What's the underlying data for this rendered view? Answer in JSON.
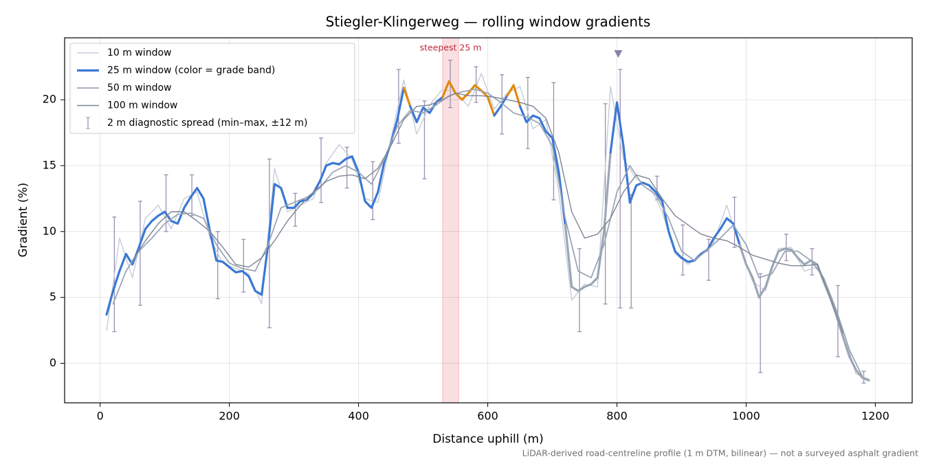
{
  "chart_data": {
    "type": "line",
    "title": "Stiegler-Klingerweg — rolling window gradients",
    "x_label": "Distance uphill (m)",
    "y_label": "Gradient (%)",
    "footnote": "LiDAR-derived road-centreline profile (1 m DTM, bilinear) — not a surveyed asphalt gradient",
    "xlim": [
      -55,
      1257
    ],
    "ylim": [
      -3,
      24.7
    ],
    "xticks": [
      0,
      200,
      400,
      600,
      800,
      1000,
      1200
    ],
    "yticks": [
      0,
      5,
      10,
      15,
      20
    ],
    "grid": true,
    "legend": "upper left",
    "series": [
      {
        "name": "10 m window",
        "color": "#c5ccd8",
        "x": [
          10,
          30,
          50,
          70,
          90,
          110,
          130,
          150,
          170,
          190,
          210,
          230,
          250,
          270,
          290,
          310,
          330,
          350,
          370,
          390,
          410,
          430,
          450,
          470,
          490,
          510,
          530,
          550,
          570,
          590,
          610,
          630,
          650,
          670,
          690,
          710,
          730,
          750,
          770,
          790,
          810,
          830,
          850,
          870,
          890,
          910,
          930,
          950,
          970,
          990,
          1010,
          1030,
          1050,
          1070,
          1090,
          1110,
          1130,
          1150,
          1170,
          1190
        ],
        "values": [
          2.5,
          9.5,
          6.5,
          11,
          12,
          10.2,
          12.5,
          13,
          9.5,
          7.6,
          7.2,
          6.8,
          4.5,
          14.8,
          11.5,
          12,
          12.5,
          15.2,
          16.6,
          15.5,
          12.5,
          12.2,
          17,
          21.5,
          17.4,
          19.6,
          20.8,
          20.6,
          19.5,
          22,
          19.3,
          20.5,
          21,
          17.8,
          18.5,
          13,
          4.8,
          6,
          5.8,
          21,
          15.5,
          14,
          13.5,
          11.5,
          8.3,
          7.5,
          8.2,
          9.2,
          12,
          8.8,
          6.2,
          5.5,
          8.7,
          8.8,
          7,
          7.3,
          5,
          2.5,
          -0.8,
          -1.2
        ]
      },
      {
        "name": "25 m window (color = grade band)",
        "color": "#3a78d4",
        "band_color": "#e08a0b",
        "band_above": 20,
        "muted_color": "#9ba6b5",
        "muted_ranges": [
          [
            715,
            785
          ],
          [
            985,
            1200
          ]
        ],
        "x": [
          10,
          20,
          30,
          40,
          50,
          60,
          70,
          80,
          90,
          100,
          110,
          120,
          130,
          140,
          150,
          160,
          170,
          180,
          190,
          200,
          210,
          220,
          230,
          240,
          250,
          260,
          270,
          280,
          290,
          300,
          310,
          320,
          330,
          340,
          350,
          360,
          370,
          380,
          390,
          400,
          410,
          420,
          430,
          440,
          450,
          460,
          470,
          480,
          490,
          500,
          510,
          520,
          530,
          540,
          550,
          560,
          570,
          580,
          590,
          600,
          610,
          620,
          630,
          640,
          650,
          660,
          670,
          680,
          690,
          700,
          710,
          720,
          730,
          740,
          750,
          760,
          770,
          780,
          790,
          800,
          810,
          820,
          830,
          840,
          850,
          860,
          870,
          880,
          890,
          900,
          910,
          920,
          930,
          940,
          950,
          960,
          970,
          980,
          990,
          1000,
          1010,
          1020,
          1030,
          1040,
          1050,
          1060,
          1070,
          1080,
          1090,
          1100,
          1110,
          1120,
          1130,
          1140,
          1150,
          1160,
          1170,
          1180,
          1190
        ],
        "values": [
          3.7,
          5.5,
          7,
          8.3,
          7.5,
          8.8,
          10.2,
          10.8,
          11.2,
          11.5,
          10.8,
          10.6,
          11.8,
          12.6,
          13.3,
          12.5,
          10,
          7.8,
          7.7,
          7.3,
          6.9,
          7,
          6.6,
          5.5,
          5.2,
          9,
          13.6,
          13.3,
          11.8,
          11.8,
          12.3,
          12.4,
          12.9,
          13.8,
          15,
          15.2,
          15.1,
          15.5,
          15.7,
          14.5,
          12.3,
          11.8,
          13,
          15.3,
          16.7,
          18.5,
          20.9,
          19.5,
          18.3,
          19.4,
          19,
          19.8,
          20.2,
          21.4,
          20.5,
          20,
          20.5,
          21.1,
          20.7,
          20.2,
          18.8,
          19.5,
          20.3,
          21.1,
          19.5,
          18.3,
          18.8,
          18.6,
          17.6,
          17.1,
          14.5,
          10.5,
          5.8,
          5.5,
          5.8,
          6,
          6.5,
          10,
          16,
          19.8,
          16.5,
          12.2,
          13.5,
          13.7,
          13.5,
          13,
          12.3,
          10,
          8.5,
          8,
          7.7,
          7.8,
          8.3,
          8.6,
          9.5,
          10.2,
          11,
          10.6,
          9,
          7.5,
          6.5,
          5,
          5.8,
          7.3,
          8.5,
          8.7,
          8.6,
          8,
          7.5,
          7.8,
          7.5,
          6.2,
          5,
          3.6,
          2,
          0.5,
          -0.5,
          -1.1,
          -1.3
        ]
      },
      {
        "name": "50 m window",
        "color": "#9ba6b5",
        "x": [
          20,
          40,
          60,
          80,
          100,
          120,
          140,
          160,
          180,
          200,
          220,
          240,
          260,
          280,
          300,
          320,
          340,
          360,
          380,
          400,
          420,
          440,
          460,
          480,
          500,
          520,
          540,
          560,
          580,
          600,
          620,
          640,
          660,
          680,
          700,
          720,
          740,
          760,
          780,
          800,
          820,
          840,
          860,
          880,
          900,
          920,
          940,
          960,
          980,
          1000,
          1020,
          1040,
          1060,
          1080,
          1100,
          1120,
          1140,
          1160,
          1180
        ],
        "values": [
          4.5,
          7,
          8.5,
          9.5,
          10.6,
          11.3,
          11.4,
          11,
          9,
          7.6,
          7.2,
          7,
          9,
          11.8,
          12.2,
          12.6,
          13.3,
          14.5,
          15,
          14.5,
          13.6,
          15.5,
          18,
          19.2,
          19,
          19.6,
          20.3,
          20.6,
          20.8,
          20.5,
          19.8,
          19,
          18.7,
          18.2,
          16.5,
          11,
          7,
          6.5,
          9,
          13,
          15,
          13.5,
          12.8,
          11,
          8.5,
          7.8,
          8.6,
          9.5,
          10.5,
          9,
          6.5,
          6.8,
          8.5,
          8.5,
          7.8,
          6.5,
          4,
          1,
          -1
        ]
      },
      {
        "name": "100 m window",
        "color": "#7c8494",
        "x": [
          50,
          70,
          90,
          110,
          130,
          150,
          170,
          190,
          210,
          230,
          250,
          270,
          290,
          310,
          330,
          350,
          370,
          390,
          410,
          430,
          450,
          470,
          490,
          510,
          530,
          550,
          570,
          590,
          610,
          630,
          650,
          670,
          690,
          710,
          730,
          750,
          770,
          790,
          810,
          830,
          850,
          870,
          890,
          910,
          930,
          950,
          970,
          990,
          1010,
          1030,
          1050,
          1070,
          1090,
          1110,
          1130,
          1150
        ],
        "values": [
          7.8,
          9.3,
          10.6,
          11.5,
          11.5,
          10.8,
          10,
          8.8,
          7.5,
          7.3,
          8,
          9.3,
          10.8,
          12,
          13,
          13.8,
          14.2,
          14.3,
          14,
          14.8,
          16.5,
          18.5,
          19.5,
          19.6,
          20,
          20.5,
          20.3,
          20.3,
          20.2,
          20,
          19.8,
          19.5,
          18.6,
          16,
          11.5,
          9.5,
          9.8,
          11,
          13,
          14.3,
          14,
          12.5,
          11.2,
          10.5,
          9.8,
          9.5,
          9.3,
          8.8,
          8.2,
          7.9,
          7.6,
          7.4,
          7.4,
          7.5,
          5,
          2.3
        ]
      }
    ],
    "error_series": {
      "name": "2 m diagnostic spread (min–max, ±12 m)",
      "color": "#9a8fb0",
      "x": [
        22,
        62,
        102,
        142,
        182,
        222,
        262,
        302,
        342,
        382,
        422,
        462,
        502,
        542,
        582,
        622,
        662,
        702,
        742,
        782,
        805,
        822,
        862,
        902,
        942,
        982,
        1022,
        1062,
        1102,
        1142,
        1182
      ],
      "low": [
        2.4,
        4.4,
        10,
        11.2,
        4.9,
        5.4,
        2.7,
        10.4,
        12.2,
        13.3,
        10.9,
        16.7,
        14,
        19.4,
        19.8,
        17.4,
        16.3,
        12.4,
        2.4,
        4.5,
        4.2,
        4.2,
        12.4,
        6.7,
        6.3,
        8.8,
        -0.7,
        7.8,
        6.7,
        0.5,
        -1.5
      ],
      "high": [
        11.1,
        12.3,
        14.3,
        14.3,
        10,
        9.4,
        15.5,
        12.9,
        17.1,
        16.4,
        15.3,
        22.3,
        19.9,
        23,
        22.5,
        21.9,
        21.7,
        21.3,
        8.7,
        19.7,
        22.3,
        12.8,
        14.2,
        10.5,
        9.4,
        12.6,
        6.8,
        9.8,
        8.7,
        5.9,
        -0.6
      ]
    },
    "highlight_span": {
      "label": "steepest 25 m",
      "xlim": [
        530,
        555
      ],
      "color": "#e06070"
    },
    "peak_marker": {
      "x": 802,
      "y": 23.5,
      "color": "#8a80a8"
    }
  }
}
